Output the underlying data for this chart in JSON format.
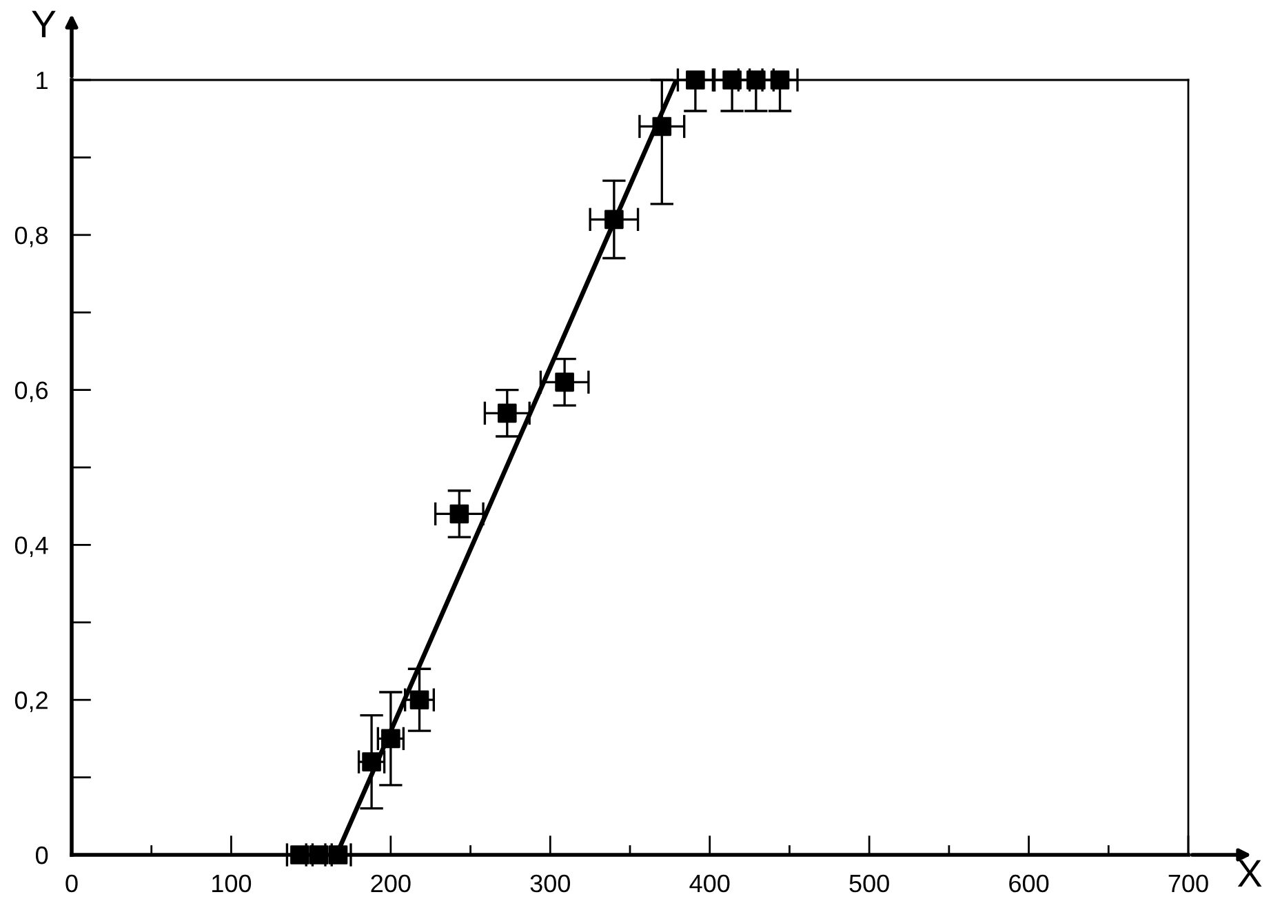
{
  "chart_data": {
    "type": "scatter",
    "xlabel": "X",
    "ylabel": "Y",
    "xlim": [
      0,
      700
    ],
    "ylim": [
      0,
      1
    ],
    "xticks": [
      0,
      {
        "value": 50,
        "label": null
      },
      100,
      {
        "value": 150,
        "label": null
      },
      200,
      {
        "value": 250,
        "label": null
      },
      300,
      {
        "value": 350,
        "label": null
      },
      400,
      {
        "value": 450,
        "label": null
      },
      500,
      {
        "value": 550,
        "label": null
      },
      600,
      {
        "value": 650,
        "label": null
      },
      700
    ],
    "yticks": [
      0,
      {
        "value": 0.1,
        "label": null
      },
      {
        "value": 0.2,
        "label": "0,2"
      },
      {
        "value": 0.3,
        "label": null
      },
      {
        "value": 0.4,
        "label": "0,4"
      },
      {
        "value": 0.5,
        "label": null
      },
      {
        "value": 0.6,
        "label": "0,6"
      },
      {
        "value": 0.7,
        "label": null
      },
      {
        "value": 0.8,
        "label": "0,8"
      },
      {
        "value": 0.9,
        "label": null
      },
      1
    ],
    "grid": false,
    "legend": false,
    "series": [
      {
        "color": "#000000",
        "marker": "square",
        "x": [
          143,
          155,
          167,
          188,
          200,
          218,
          243,
          273,
          309,
          340,
          370,
          391,
          414,
          429,
          444
        ],
        "values": [
          0,
          0,
          0,
          0.12,
          0.15,
          0.2,
          0.44,
          0.57,
          0.61,
          0.82,
          0.94,
          1,
          1,
          1,
          1
        ],
        "errors": [
          null,
          null,
          null,
          0.06,
          0.06,
          0.04,
          0.03,
          0.03,
          0.03,
          0.05,
          [
            0.84,
            1.0
          ],
          [
            0.96,
            1.0
          ],
          [
            0.96,
            1.0
          ],
          [
            0.96,
            1.0
          ],
          [
            0.96,
            1.0
          ]
        ],
        "xerrors": [
          8,
          8,
          8,
          8,
          8,
          9,
          15,
          14,
          15,
          15,
          14,
          11,
          11,
          11,
          11
        ]
      },
      {
        "type": "line",
        "color": "#000000",
        "marker": "none",
        "line_style": "solid",
        "x": [
          166,
          379
        ],
        "values": [
          0,
          1
        ]
      }
    ]
  }
}
